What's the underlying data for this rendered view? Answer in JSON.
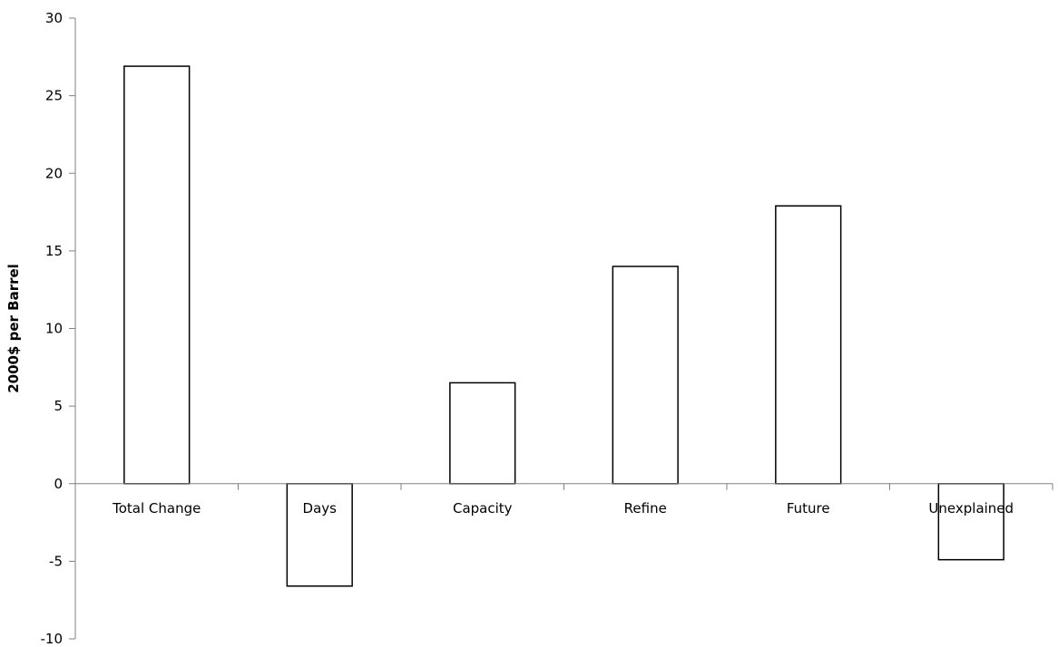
{
  "chart_data": {
    "type": "bar",
    "title": "",
    "xlabel": "",
    "ylabel": "2000$ per Barrel",
    "categories": [
      "Total Change",
      "Days",
      "Capacity",
      "Refine",
      "Future",
      "Unexplained"
    ],
    "values": [
      26.9,
      -6.6,
      6.5,
      14.0,
      17.9,
      -4.9
    ],
    "ylim": [
      -10,
      30
    ],
    "yticks": [
      "-10",
      "-5",
      "0",
      "5",
      "10",
      "15",
      "20",
      "25",
      "30"
    ],
    "grid": false,
    "legend": "none",
    "colors": {
      "bar_fill": "#ffffff",
      "bar_stroke": "#000000",
      "axis": "#808080"
    }
  }
}
